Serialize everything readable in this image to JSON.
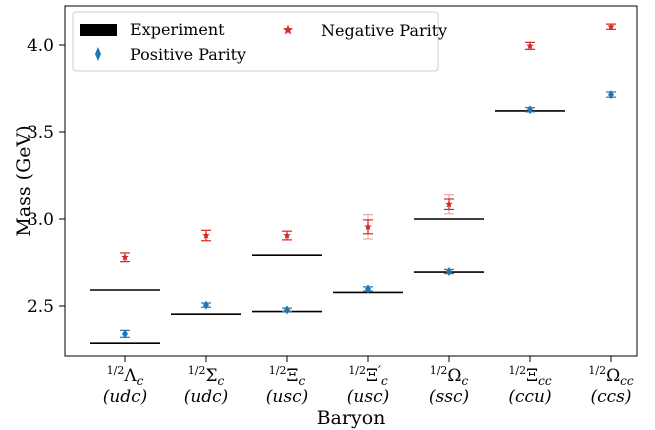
{
  "chart_data": {
    "type": "scatter",
    "xlabel": "Baryon",
    "ylabel": "Mass (GeV)",
    "ylim": [
      2.2,
      4.22
    ],
    "yticks": [
      "2.5",
      "3.0",
      "3.5",
      "4.0"
    ],
    "ytick_values": [
      2.5,
      3.0,
      3.5,
      4.0
    ],
    "grid": false,
    "legend_placement": "top-left",
    "categories": [
      {
        "prefix": "1/2",
        "symbol": "Λ",
        "sub": "c",
        "prime": "",
        "quarks": "(udc)"
      },
      {
        "prefix": "1/2",
        "symbol": "Σ",
        "sub": "c",
        "prime": "",
        "quarks": "(udc)"
      },
      {
        "prefix": "1/2",
        "symbol": "Ξ",
        "sub": "c",
        "prime": "",
        "quarks": "(usc)"
      },
      {
        "prefix": "1/2",
        "symbol": "Ξ",
        "sub": "c",
        "prime": "′",
        "quarks": "(usc)"
      },
      {
        "prefix": "1/2",
        "symbol": "Ω",
        "sub": "c",
        "prime": "",
        "quarks": "(ssc)"
      },
      {
        "prefix": "1/2",
        "symbol": "Ξ",
        "sub": "cc",
        "prime": "",
        "quarks": "(ccu)"
      },
      {
        "prefix": "1/2",
        "symbol": "Ω",
        "sub": "cc",
        "prime": "",
        "quarks": "(ccs)"
      }
    ],
    "series": [
      {
        "name": "Experiment",
        "marker": "line",
        "color": "#000000",
        "entries": [
          {
            "cat": 0,
            "values": [
              2.286,
              2.592
            ]
          },
          {
            "cat": 1,
            "values": [
              2.453
            ]
          },
          {
            "cat": 2,
            "values": [
              2.468,
              2.792
            ]
          },
          {
            "cat": 3,
            "values": [
              2.578
            ]
          },
          {
            "cat": 4,
            "values": [
              2.695,
              3.0
            ]
          },
          {
            "cat": 5,
            "values": [
              3.621
            ]
          }
        ]
      },
      {
        "name": "Positive Parity",
        "marker": "diamond",
        "color": "#1f77b4",
        "points": [
          {
            "cat": 0,
            "y": 2.34,
            "err": 0.02
          },
          {
            "cat": 1,
            "y": 2.505,
            "err": 0.012
          },
          {
            "cat": 2,
            "y": 2.478,
            "err": 0.01
          },
          {
            "cat": 3,
            "y": 2.598,
            "err": 0.012
          },
          {
            "cat": 4,
            "y": 2.698,
            "err": 0.012
          },
          {
            "cat": 5,
            "y": 3.628,
            "err": 0.012
          },
          {
            "cat": 6,
            "y": 3.715,
            "err": 0.015
          }
        ]
      },
      {
        "name": "Negative Parity",
        "marker": "star",
        "color": "#d62728",
        "points": [
          {
            "cat": 0,
            "y": 2.78,
            "err": 0.025
          },
          {
            "cat": 1,
            "y": 2.905,
            "err": 0.03
          },
          {
            "cat": 2,
            "y": 2.905,
            "err": 0.025
          },
          {
            "cat": 3,
            "y": 2.955,
            "err": 0.04,
            "err_outer": 0.07
          },
          {
            "cat": 4,
            "y": 3.085,
            "err": 0.03,
            "err_outer": 0.055
          },
          {
            "cat": 5,
            "y": 3.995,
            "err": 0.02
          },
          {
            "cat": 6,
            "y": 4.105,
            "err": 0.015
          }
        ]
      }
    ]
  }
}
